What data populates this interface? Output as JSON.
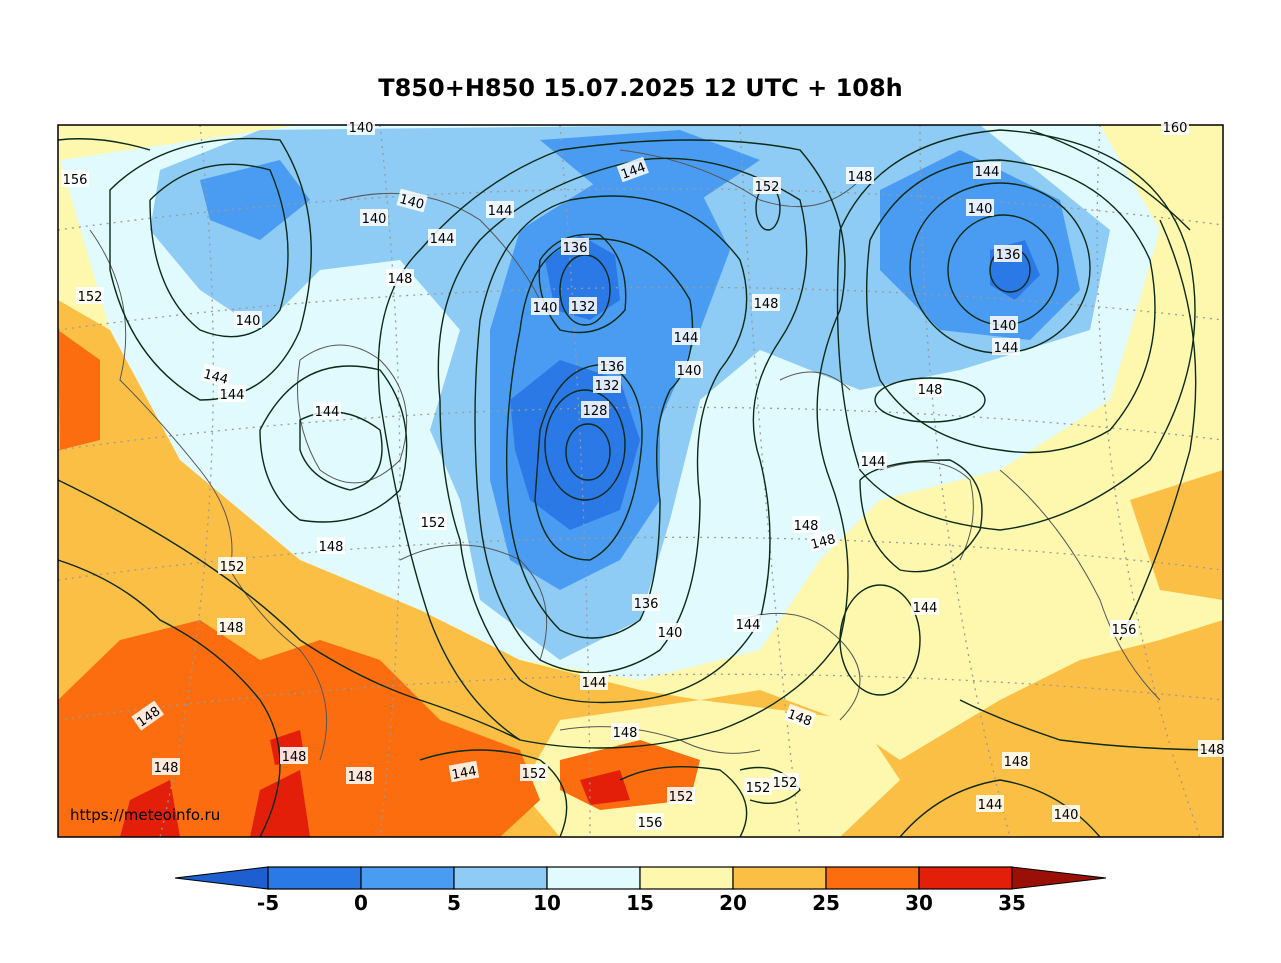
{
  "title": "T850+H850 15.07.2025 12 UTC + 108h",
  "watermark": "https://meteoinfo.ru",
  "colorbar": {
    "ticks": [
      "-5",
      "0",
      "5",
      "10",
      "15",
      "20",
      "25",
      "30",
      "35"
    ],
    "colors": [
      "#2a79e6",
      "#4a9cf2",
      "#8ecbf5",
      "#e0fafd",
      "#fef7ae",
      "#fcbf46",
      "#fb6d0f",
      "#e31f0a"
    ],
    "under_color": "#1d5fd1",
    "over_color": "#9a1007"
  },
  "contour_labels": [
    {
      "text": "156"
    },
    {
      "text": "140"
    },
    {
      "text": "160"
    },
    {
      "text": "140"
    },
    {
      "text": "140"
    },
    {
      "text": "144"
    },
    {
      "text": "144"
    },
    {
      "text": "152"
    },
    {
      "text": "148"
    },
    {
      "text": "144"
    },
    {
      "text": "144"
    },
    {
      "text": "136"
    },
    {
      "text": "140"
    },
    {
      "text": "140"
    },
    {
      "text": "148"
    },
    {
      "text": "152"
    },
    {
      "text": "132"
    },
    {
      "text": "148"
    },
    {
      "text": "136"
    },
    {
      "text": "140"
    },
    {
      "text": "144"
    },
    {
      "text": "140"
    },
    {
      "text": "144"
    },
    {
      "text": "144"
    },
    {
      "text": "136"
    },
    {
      "text": "144"
    },
    {
      "text": "132"
    },
    {
      "text": "140"
    },
    {
      "text": "148"
    },
    {
      "text": "144"
    },
    {
      "text": "128"
    },
    {
      "text": "144"
    },
    {
      "text": "152"
    },
    {
      "text": "148"
    },
    {
      "text": "148"
    },
    {
      "text": "148"
    },
    {
      "text": "152"
    },
    {
      "text": "136"
    },
    {
      "text": "144"
    },
    {
      "text": "140"
    },
    {
      "text": "144"
    },
    {
      "text": "156"
    },
    {
      "text": "148"
    },
    {
      "text": "144"
    },
    {
      "text": "148"
    },
    {
      "text": "148"
    },
    {
      "text": "148"
    },
    {
      "text": "148"
    },
    {
      "text": "148"
    },
    {
      "text": "144"
    },
    {
      "text": "152"
    },
    {
      "text": "152"
    },
    {
      "text": "152"
    },
    {
      "text": "148"
    },
    {
      "text": "148"
    },
    {
      "text": "144"
    },
    {
      "text": "148"
    },
    {
      "text": "156"
    },
    {
      "text": "140"
    },
    {
      "text": "152"
    }
  ]
}
